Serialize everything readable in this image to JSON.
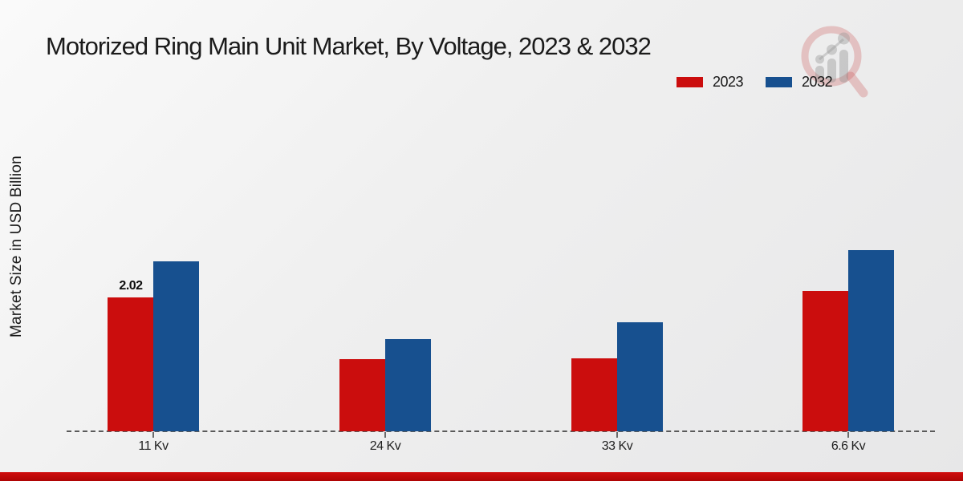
{
  "page_title": "Motorized Ring Main Unit Market, By Voltage, 2023 & 2032",
  "chart_data": {
    "type": "bar",
    "title": "Motorized Ring Main Unit Market, By Voltage, 2023 & 2032",
    "xlabel": "",
    "ylabel": "Market Size in USD Billion",
    "categories": [
      "11 Kv",
      "24 Kv",
      "33 Kv",
      "6.6 Kv"
    ],
    "series": [
      {
        "name": "2023",
        "color": "#cb0d0d",
        "values": [
          2.02,
          1.09,
          1.1,
          2.12
        ]
      },
      {
        "name": "2032",
        "color": "#17508f",
        "values": [
          2.56,
          1.39,
          1.64,
          2.73
        ]
      }
    ],
    "annotations": [
      {
        "series": "2023",
        "category": "11 Kv",
        "text": "2.02"
      }
    ],
    "ylim": [
      0,
      3.2
    ],
    "grid": false,
    "y_axis_ticks_visible": false,
    "legend_position": "top-right",
    "baseline_style": "dashed"
  },
  "branding": {
    "watermark": "magnifier-bar-chart-logo",
    "accent_strip_color": "#c20a0a"
  }
}
